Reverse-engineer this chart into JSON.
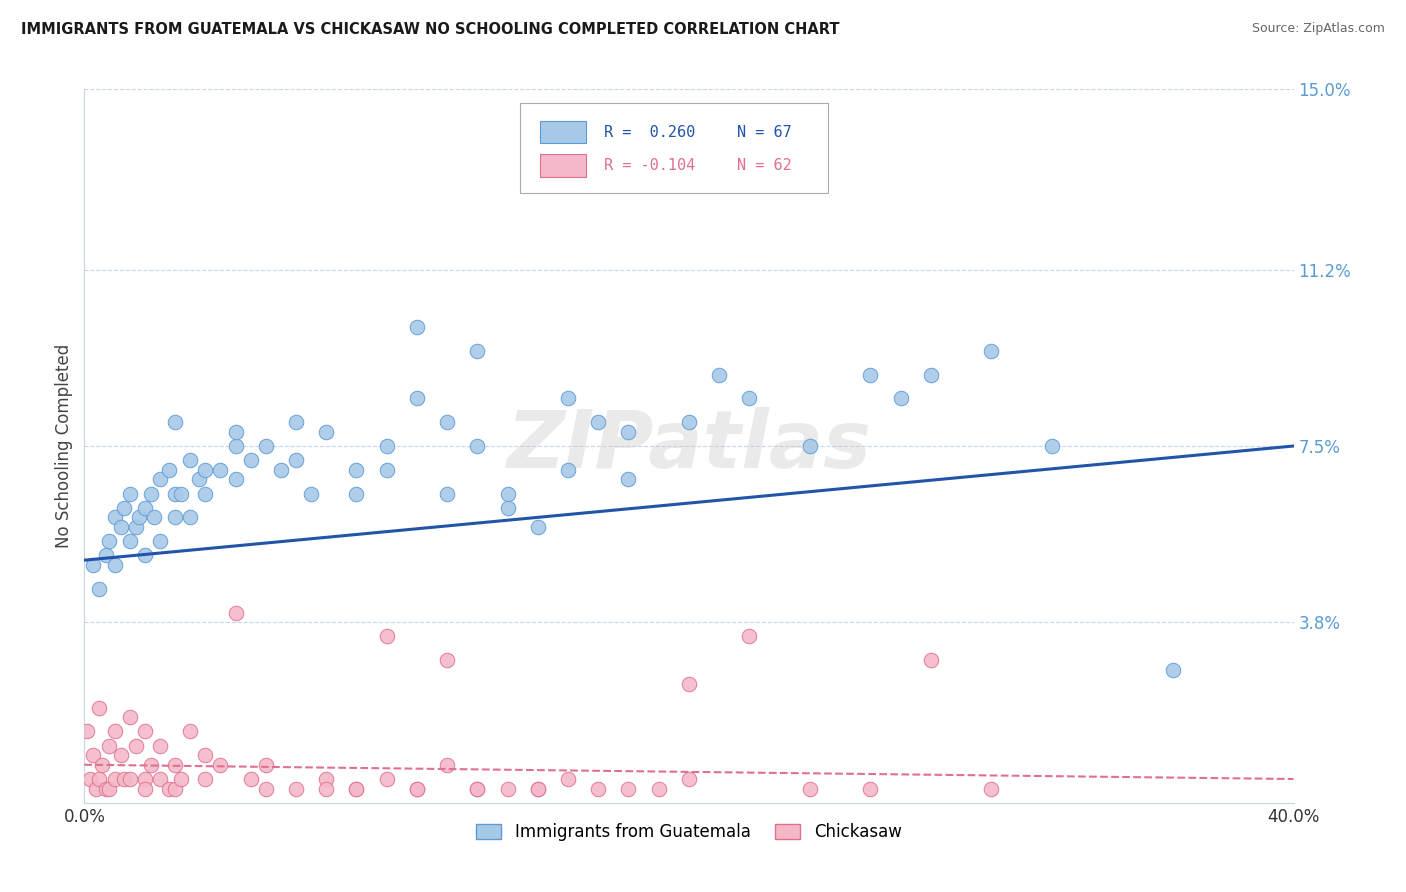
{
  "title": "IMMIGRANTS FROM GUATEMALA VS CHICKASAW NO SCHOOLING COMPLETED CORRELATION CHART",
  "source": "Source: ZipAtlas.com",
  "ylabel": "No Schooling Completed",
  "legend_blue_r": "R =  0.260",
  "legend_blue_n": "N = 67",
  "legend_pink_r": "R = -0.104",
  "legend_pink_n": "N = 62",
  "legend_label_blue": "Immigrants from Guatemala",
  "legend_label_pink": "Chickasaw",
  "watermark": "ZIPatlas",
  "blue_color": "#a8c8e8",
  "blue_edge_color": "#5b9bd5",
  "blue_line_color": "#2255aa",
  "pink_color": "#f4b8c8",
  "pink_edge_color": "#e07090",
  "pink_line_color": "#e07090",
  "background_color": "#ffffff",
  "grid_color": "#c8d4e8",
  "right_tick_color": "#5b9bd5",
  "blue_x": [
    0.3,
    0.5,
    0.7,
    0.8,
    1.0,
    1.0,
    1.2,
    1.3,
    1.5,
    1.5,
    1.7,
    1.8,
    2.0,
    2.0,
    2.2,
    2.3,
    2.5,
    2.5,
    2.8,
    3.0,
    3.0,
    3.2,
    3.5,
    3.5,
    3.8,
    4.0,
    4.0,
    4.5,
    5.0,
    5.0,
    5.5,
    6.0,
    6.5,
    7.0,
    7.5,
    8.0,
    9.0,
    10.0,
    11.0,
    12.0,
    13.0,
    14.0,
    15.0,
    16.0,
    17.0,
    18.0,
    20.0,
    22.0,
    24.0,
    26.0,
    28.0,
    30.0,
    32.0,
    36.0,
    11.0,
    13.0,
    3.0,
    5.0,
    7.0,
    9.0,
    10.0,
    12.0,
    14.0,
    16.0,
    18.0,
    21.0,
    27.0
  ],
  "blue_y": [
    5.0,
    4.5,
    5.2,
    5.5,
    5.0,
    6.0,
    5.8,
    6.2,
    5.5,
    6.5,
    5.8,
    6.0,
    5.2,
    6.2,
    6.5,
    6.0,
    6.8,
    5.5,
    7.0,
    6.0,
    6.5,
    6.5,
    7.2,
    6.0,
    6.8,
    6.5,
    7.0,
    7.0,
    6.8,
    7.5,
    7.2,
    7.5,
    7.0,
    7.2,
    6.5,
    7.8,
    7.0,
    7.5,
    8.5,
    8.0,
    7.5,
    6.5,
    5.8,
    8.5,
    8.0,
    7.8,
    8.0,
    8.5,
    7.5,
    9.0,
    9.0,
    9.5,
    7.5,
    2.8,
    10.0,
    9.5,
    8.0,
    7.8,
    8.0,
    6.5,
    7.0,
    6.5,
    6.2,
    7.0,
    6.8,
    9.0,
    8.5
  ],
  "pink_x": [
    0.1,
    0.2,
    0.3,
    0.4,
    0.5,
    0.5,
    0.6,
    0.7,
    0.8,
    0.8,
    1.0,
    1.0,
    1.2,
    1.3,
    1.5,
    1.5,
    1.7,
    2.0,
    2.0,
    2.2,
    2.5,
    2.5,
    2.8,
    3.0,
    3.0,
    3.2,
    3.5,
    4.0,
    4.5,
    5.0,
    5.5,
    6.0,
    7.0,
    8.0,
    9.0,
    10.0,
    11.0,
    12.0,
    13.0,
    14.0,
    15.0,
    16.0,
    18.0,
    20.0,
    22.0,
    24.0,
    26.0,
    28.0,
    30.0,
    10.0,
    12.0,
    15.0,
    17.0,
    20.0,
    2.0,
    4.0,
    6.0,
    8.0,
    9.0,
    11.0,
    13.0,
    19.0
  ],
  "pink_y": [
    1.5,
    0.5,
    1.0,
    0.3,
    2.0,
    0.5,
    0.8,
    0.3,
    1.2,
    0.3,
    1.5,
    0.5,
    1.0,
    0.5,
    1.8,
    0.5,
    1.2,
    1.5,
    0.5,
    0.8,
    1.2,
    0.5,
    0.3,
    0.8,
    0.3,
    0.5,
    1.5,
    0.5,
    0.8,
    4.0,
    0.5,
    0.8,
    0.3,
    0.5,
    0.3,
    0.5,
    0.3,
    0.8,
    0.3,
    0.3,
    0.3,
    0.5,
    0.3,
    0.5,
    3.5,
    0.3,
    0.3,
    3.0,
    0.3,
    3.5,
    3.0,
    0.3,
    0.3,
    2.5,
    0.3,
    1.0,
    0.3,
    0.3,
    0.3,
    0.3,
    0.3,
    0.3
  ],
  "blue_line_start_y": 5.1,
  "blue_line_end_y": 7.5,
  "pink_line_start_y": 0.8,
  "pink_line_end_y": 0.5,
  "xlim": [
    0,
    40
  ],
  "ylim": [
    0,
    15
  ],
  "right_yticks": [
    3.8,
    7.5,
    11.2,
    15.0
  ],
  "right_yticklabels": [
    "3.8%",
    "7.5%",
    "11.2%",
    "15.0%"
  ]
}
